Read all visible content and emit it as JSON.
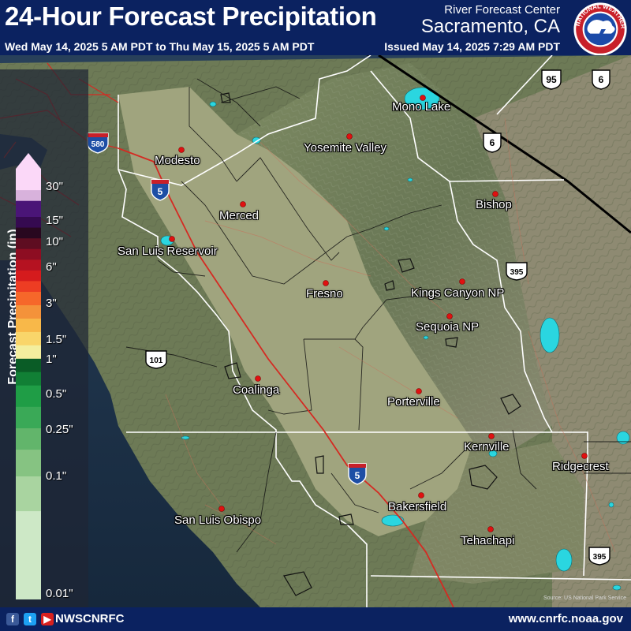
{
  "header": {
    "title": "24-Hour Forecast Precipitation",
    "date_range": "Wed May 14, 2025 5 AM PDT to Thu May 15, 2025 5 AM PDT",
    "rfc_line1": "River Forecast Center",
    "rfc_line2": "Sacramento, CA",
    "issued": "Issued May 14, 2025 7:29 AM PDT",
    "logo_text": "NATIONAL WEATHER SERVICE"
  },
  "legend": {
    "title": "Forecast Precipitation (in)",
    "labels": [
      {
        "text": "30\"",
        "value": 30
      },
      {
        "text": "15\"",
        "value": 15
      },
      {
        "text": "10\"",
        "value": 10
      },
      {
        "text": "6\"",
        "value": 6
      },
      {
        "text": "3\"",
        "value": 3
      },
      {
        "text": "1.5\"",
        "value": 1.5
      },
      {
        "text": "1\"",
        "value": 1
      },
      {
        "text": "0.5\"",
        "value": 0.5
      },
      {
        "text": "0.25\"",
        "value": 0.25
      },
      {
        "text": "0.1\"",
        "value": 0.1
      },
      {
        "text": "0.01\"",
        "value": 0.01
      }
    ],
    "colors": [
      "#fbd8f8",
      "#d8b2dc",
      "#4a1577",
      "#350a50",
      "#28081f",
      "#5e0d21",
      "#8d0d22",
      "#b51221",
      "#d51b1d",
      "#ed3d23",
      "#f6672a",
      "#f4923a",
      "#f8b849",
      "#f9d56a",
      "#f3ee9e",
      "#0a5c26",
      "#117f35",
      "#1f9d46",
      "#3aa957",
      "#62b56b",
      "#86c382",
      "#a9d4a0",
      "#cde8c6"
    ]
  },
  "highways": [
    {
      "type": "interstate",
      "number": "580"
    },
    {
      "type": "interstate",
      "number": "5"
    },
    {
      "type": "interstate",
      "number": "5"
    },
    {
      "type": "us",
      "number": "95"
    },
    {
      "type": "us",
      "number": "6"
    },
    {
      "type": "us",
      "number": "6"
    },
    {
      "type": "us",
      "number": "395"
    },
    {
      "type": "us",
      "number": "395"
    },
    {
      "type": "us",
      "number": "101"
    }
  ],
  "places": [
    "Mono Lake",
    "Yosemite Valley",
    "Modesto",
    "Bishop",
    "Merced",
    "San Luis Reservoir",
    "Fresno",
    "Kings Canyon NP",
    "Sequoia NP",
    "Coalinga",
    "Porterville",
    "Kernville",
    "Ridgecrest",
    "Bakersfield",
    "San Luis Obispo",
    "Tehachapi"
  ],
  "credit": "Source: US National Park Service",
  "footer": {
    "handle": "NWSCNRFC",
    "website": "www.cnrfc.noaa.gov",
    "social": [
      "facebook-icon",
      "twitter-icon",
      "youtube-icon"
    ]
  },
  "colors": {
    "header_bg": "#0b2260",
    "ocean": "#1e3248",
    "valley": "#9aa27a",
    "mountains": "#6f7f5a",
    "highway": "#d42a22",
    "county_line": "#111111",
    "state_line": "#ffffff",
    "water": "#2ad6e0",
    "city_dot": "#e01010"
  }
}
